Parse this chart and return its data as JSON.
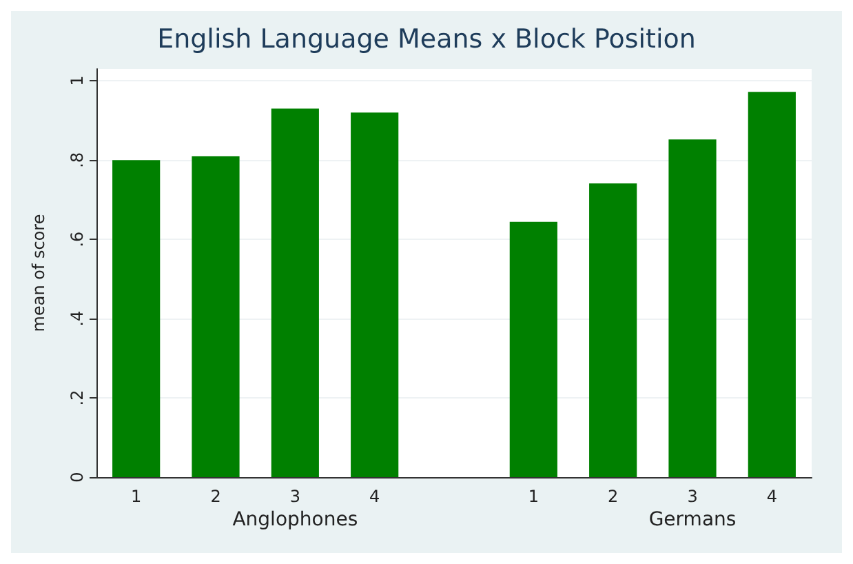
{
  "chart_data": {
    "type": "bar",
    "title": "English Language Means x Block Position",
    "ylabel": "mean of score",
    "categories": [
      "1",
      "2",
      "3",
      "4",
      null,
      "1",
      "2",
      "3",
      "4"
    ],
    "values": [
      0.8,
      0.81,
      0.93,
      0.92,
      null,
      0.644,
      0.741,
      0.852,
      0.972
    ],
    "color": "#008000",
    "ylim": [
      0,
      1.03
    ],
    "yticks": [
      0,
      {
        "value": 0.2,
        "label": ".2"
      },
      {
        "value": 0.4,
        "label": ".4"
      },
      {
        "value": 0.6,
        "label": ".6"
      },
      {
        "value": 0.8,
        "label": ".8"
      },
      1
    ],
    "grid": "y",
    "annotations": [
      "Anglophones",
      "Germans"
    ]
  }
}
